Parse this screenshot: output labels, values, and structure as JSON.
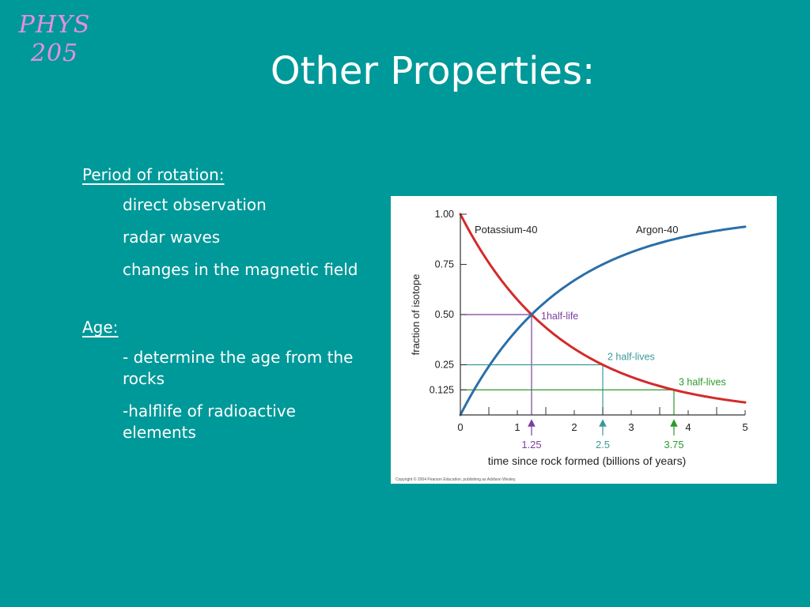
{
  "logo": {
    "line1": "PHYS",
    "line2": "205"
  },
  "slide": {
    "title": "Other Properties:"
  },
  "sections": [
    {
      "heading": "Period of rotation:",
      "items": [
        "direct observation",
        "radar waves",
        "changes in the magnetic field"
      ]
    },
    {
      "heading": "Age:",
      "items": [
        "- determine the age from the rocks",
        "-halflife of radioactive elements"
      ]
    }
  ],
  "chart_data": {
    "type": "line",
    "xlabel": "time since rock formed (billions of years)",
    "ylabel": "fraction of isotope",
    "xlim": [
      0,
      5
    ],
    "ylim": [
      0,
      1
    ],
    "x_ticks": [
      "0",
      "1",
      "2",
      "3",
      "4",
      "5"
    ],
    "y_ticks": [
      "0.125",
      "0.25",
      "0.50",
      "0.75",
      "1.00"
    ],
    "y_tick_values": [
      0.125,
      0.25,
      0.5,
      0.75,
      1.0
    ],
    "half_life": 1.25,
    "series": [
      {
        "name": "Potassium-40",
        "color": "#d42a2a",
        "x": [
          0,
          0.25,
          0.5,
          0.75,
          1.0,
          1.25,
          1.5,
          1.75,
          2.0,
          2.25,
          2.5,
          2.75,
          3.0,
          3.25,
          3.5,
          3.75,
          4.0,
          4.25,
          4.5,
          4.75,
          5.0
        ],
        "values": [
          1.0,
          0.871,
          0.758,
          0.66,
          0.574,
          0.5,
          0.435,
          0.379,
          0.33,
          0.287,
          0.25,
          0.218,
          0.189,
          0.165,
          0.144,
          0.125,
          0.109,
          0.095,
          0.082,
          0.072,
          0.063
        ]
      },
      {
        "name": "Argon-40",
        "color": "#2b6fa8",
        "x": [
          0,
          0.25,
          0.5,
          0.75,
          1.0,
          1.25,
          1.5,
          1.75,
          2.0,
          2.25,
          2.5,
          2.75,
          3.0,
          3.25,
          3.5,
          3.75,
          4.0,
          4.25,
          4.5,
          4.75,
          5.0
        ],
        "values": [
          0.0,
          0.129,
          0.242,
          0.34,
          0.426,
          0.5,
          0.565,
          0.621,
          0.67,
          0.713,
          0.75,
          0.782,
          0.811,
          0.835,
          0.856,
          0.875,
          0.891,
          0.905,
          0.918,
          0.928,
          0.937
        ]
      }
    ],
    "annotations": [
      {
        "label": "1half-life",
        "x": 1.25,
        "y": 0.5,
        "arrow_label": "1.25",
        "color": "#7b3fa0"
      },
      {
        "label": "2 half-lives",
        "x": 2.5,
        "y": 0.25,
        "arrow_label": "2.5",
        "color": "#3a9a9a"
      },
      {
        "label": "3 half-lives",
        "x": 3.75,
        "y": 0.125,
        "arrow_label": "3.75",
        "color": "#2c9a2c"
      }
    ],
    "copyright": "Copyright © 2004 Pearson Education, publishing as Addison Wesley."
  }
}
